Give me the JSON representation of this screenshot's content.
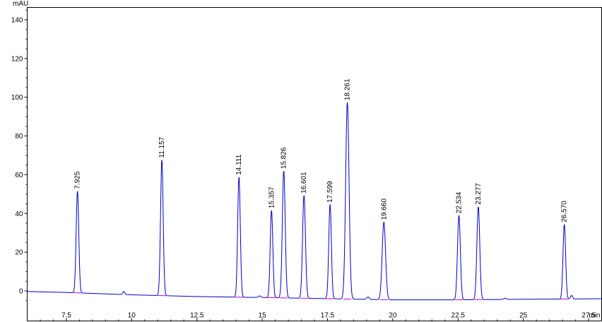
{
  "chart_data": {
    "type": "line",
    "y_unit": "mAU",
    "x_unit": "min",
    "xlim": [
      6.0,
      28.0
    ],
    "ylim": [
      -9,
      150
    ],
    "x_ticks": [
      7.5,
      10,
      12.5,
      15,
      17.5,
      20,
      22.5,
      25,
      27.5
    ],
    "x_tick_labels": [
      "7.5",
      "10",
      "12.5",
      "15",
      "17.5",
      "20",
      "22.5",
      "25",
      "27.5"
    ],
    "y_ticks": [
      0,
      20,
      40,
      60,
      80,
      100,
      120,
      140
    ],
    "y_tick_labels": [
      "0",
      "20",
      "40",
      "60",
      "80",
      "100",
      "120",
      "140"
    ],
    "grid": false,
    "baseline": {
      "x": [
        6.0,
        7.5,
        10,
        12.5,
        15,
        17.5,
        20,
        22.5,
        25,
        27.5,
        28.0
      ],
      "y": [
        -0.3,
        -0.8,
        -2.0,
        -2.9,
        -3.4,
        -4.0,
        -4.6,
        -4.6,
        -4.3,
        -4.1,
        -4.0
      ]
    },
    "peaks": [
      {
        "rt": 7.925,
        "label": "7.925",
        "height": 52.5,
        "width": 0.05
      },
      {
        "rt": 11.157,
        "label": "11.157",
        "height": 70.0,
        "width": 0.05
      },
      {
        "rt": 14.111,
        "label": "14.111",
        "height": 62.0,
        "width": 0.05
      },
      {
        "rt": 15.357,
        "label": "15.357",
        "height": 45.0,
        "width": 0.05
      },
      {
        "rt": 15.826,
        "label": "15.826",
        "height": 65.5,
        "width": 0.055
      },
      {
        "rt": 16.601,
        "label": "16.601",
        "height": 53.0,
        "width": 0.055
      },
      {
        "rt": 17.599,
        "label": "17.599",
        "height": 48.5,
        "width": 0.05
      },
      {
        "rt": 18.261,
        "label": "18.261",
        "height": 101.5,
        "width": 0.065
      },
      {
        "rt": 19.66,
        "label": "19.660",
        "height": 40.0,
        "width": 0.065
      },
      {
        "rt": 22.534,
        "label": "22.534",
        "height": 43.5,
        "width": 0.055
      },
      {
        "rt": 23.277,
        "label": "23.277",
        "height": 48.0,
        "width": 0.055
      },
      {
        "rt": 26.57,
        "label": "26.570",
        "height": 38.5,
        "width": 0.05
      }
    ],
    "minor_peaks": [
      {
        "rt": 9.7,
        "height": 1.5,
        "width": 0.04
      },
      {
        "rt": 14.9,
        "height": 0.8,
        "width": 0.05
      },
      {
        "rt": 19.05,
        "height": 1.2,
        "width": 0.05
      },
      {
        "rt": 24.3,
        "height": 0.6,
        "width": 0.05
      },
      {
        "rt": 26.85,
        "height": 1.8,
        "width": 0.04
      }
    ],
    "colors": {
      "signal": "#0000cc",
      "peak_baseline": "#cc00cc",
      "axis": "#000000"
    }
  }
}
